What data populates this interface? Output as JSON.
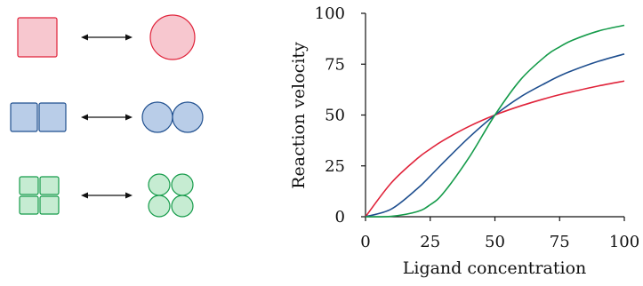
{
  "colors": {
    "red": "#e0233a",
    "blue": "#1f4f8f",
    "green": "#159b4a",
    "red_fill": "#f7c7cf",
    "blue_fill": "#b9cde8",
    "green_fill": "#c6ecd2"
  },
  "schematic": {
    "rows": [
      {
        "left_shape": "square",
        "subunits": 1,
        "right_shape": "circle",
        "arrow": "double-headed-arrow-icon",
        "color": "red"
      },
      {
        "left_shape": "square",
        "subunits": 2,
        "right_shape": "circle",
        "arrow": "double-headed-arrow-icon",
        "color": "blue"
      },
      {
        "left_shape": "square",
        "subunits": 4,
        "right_shape": "circle",
        "arrow": "double-headed-arrow-icon",
        "color": "green"
      }
    ]
  },
  "chart_data": {
    "type": "line",
    "xlabel": "Ligand concentration",
    "ylabel": "Reaction velocity",
    "xlim": [
      0,
      100
    ],
    "ylim": [
      0,
      100
    ],
    "x_ticks": [
      "0",
      "25",
      "50",
      "75",
      "100"
    ],
    "y_ticks": [
      "0",
      "25",
      "50",
      "75",
      "100"
    ],
    "grid": false,
    "x": [
      0,
      10,
      20,
      25,
      30,
      40,
      50,
      60,
      70,
      75,
      80,
      90,
      100
    ],
    "series": [
      {
        "color": "red",
        "values": [
          0,
          16.7,
          28.6,
          33.3,
          37.5,
          44.4,
          50,
          54.5,
          58.3,
          60,
          61.5,
          64.3,
          66.7
        ]
      },
      {
        "color": "blue",
        "values": [
          0,
          3.8,
          13.8,
          20,
          26.5,
          39,
          50,
          59,
          66,
          69.2,
          71.9,
          76.4,
          80
        ]
      },
      {
        "color": "green",
        "values": [
          0,
          0.2,
          2.5,
          5.9,
          11.5,
          29.1,
          50,
          67.5,
          79.4,
          83.5,
          86.8,
          91.3,
          94.1
        ]
      }
    ]
  }
}
